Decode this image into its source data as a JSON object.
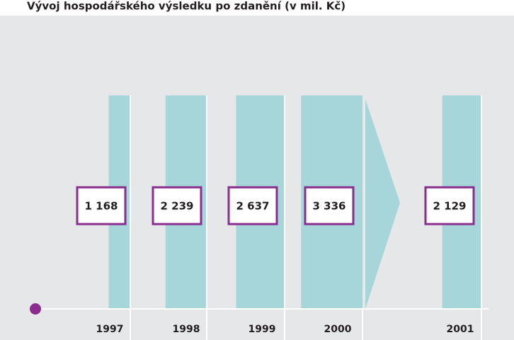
{
  "chart_data": {
    "type": "bar",
    "title": "Vývoj hospodářského výsledku po zdanění (v mil. Kč)",
    "categories": [
      "1997",
      "1998",
      "1999",
      "2000",
      "2001"
    ],
    "values": [
      1168,
      2239,
      2637,
      3336,
      2129
    ],
    "value_labels": [
      "1 168",
      "2 239",
      "2 637",
      "3 336",
      "2 129"
    ],
    "color": "#a6d6da",
    "label_box_color": "#8b2d8f"
  }
}
